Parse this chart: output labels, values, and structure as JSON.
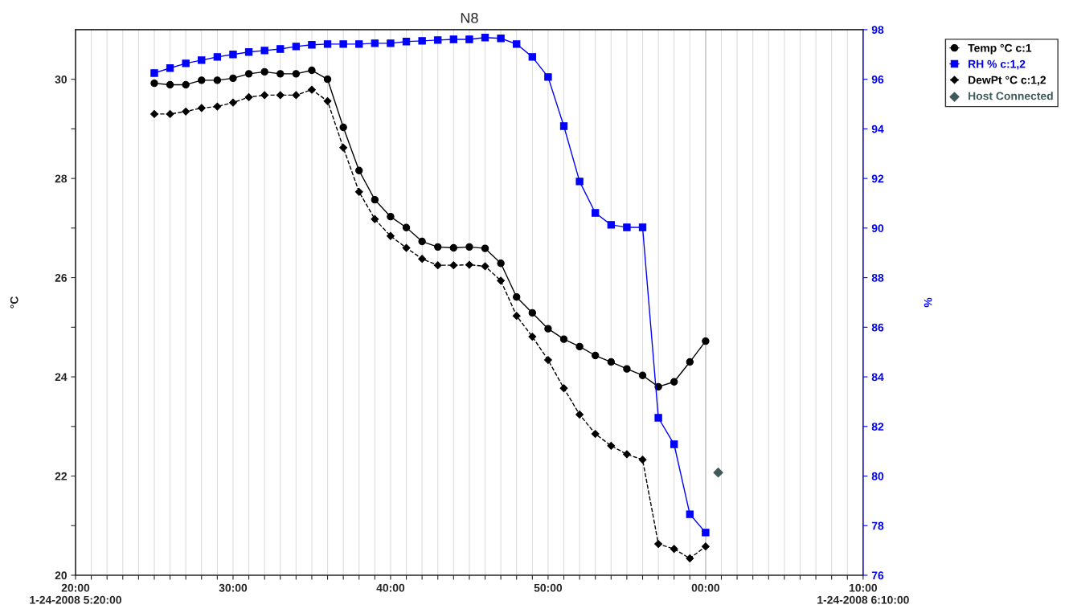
{
  "chart_data": {
    "type": "line",
    "title": "N8",
    "ylabel": "°C",
    "y2label": "%",
    "x": [
      "2008-01-24T05:25",
      "2008-01-24T05:26",
      "2008-01-24T05:27",
      "2008-01-24T05:28",
      "2008-01-24T05:29",
      "2008-01-24T05:30",
      "2008-01-24T05:31",
      "2008-01-24T05:32",
      "2008-01-24T05:33",
      "2008-01-24T05:34",
      "2008-01-24T05:35",
      "2008-01-24T05:36",
      "2008-01-24T05:37",
      "2008-01-24T05:38",
      "2008-01-24T05:39",
      "2008-01-24T05:40",
      "2008-01-24T05:41",
      "2008-01-24T05:42",
      "2008-01-24T05:43",
      "2008-01-24T05:44",
      "2008-01-24T05:45",
      "2008-01-24T05:46",
      "2008-01-24T05:47",
      "2008-01-24T05:48",
      "2008-01-24T05:49",
      "2008-01-24T05:50",
      "2008-01-24T05:51",
      "2008-01-24T05:52",
      "2008-01-24T05:53",
      "2008-01-24T05:54",
      "2008-01-24T05:55",
      "2008-01-24T05:56",
      "2008-01-24T05:57",
      "2008-01-24T05:58",
      "2008-01-24T05:59",
      "2008-01-24T06:00"
    ],
    "xlim": [
      "2008-01-24T05:20",
      "2008-01-24T06:10"
    ],
    "xticks": [
      {
        "value": "2008-01-24T05:20",
        "label": "20:00\n1-24-2008 5:20:00"
      },
      {
        "value": "2008-01-24T05:21",
        "label": null
      },
      {
        "value": "2008-01-24T05:22",
        "label": null
      },
      {
        "value": "2008-01-24T05:23",
        "label": null
      },
      {
        "value": "2008-01-24T05:24",
        "label": null
      },
      {
        "value": "2008-01-24T05:25",
        "label": null
      },
      {
        "value": "2008-01-24T05:26",
        "label": null
      },
      {
        "value": "2008-01-24T05:27",
        "label": null
      },
      {
        "value": "2008-01-24T05:28",
        "label": null
      },
      {
        "value": "2008-01-24T05:29",
        "label": null
      },
      {
        "value": "2008-01-24T05:30",
        "label": "30:00"
      },
      {
        "value": "2008-01-24T05:31",
        "label": null
      },
      {
        "value": "2008-01-24T05:32",
        "label": null
      },
      {
        "value": "2008-01-24T05:33",
        "label": null
      },
      {
        "value": "2008-01-24T05:34",
        "label": null
      },
      {
        "value": "2008-01-24T05:35",
        "label": null
      },
      {
        "value": "2008-01-24T05:36",
        "label": null
      },
      {
        "value": "2008-01-24T05:37",
        "label": null
      },
      {
        "value": "2008-01-24T05:38",
        "label": null
      },
      {
        "value": "2008-01-24T05:39",
        "label": null
      },
      {
        "value": "2008-01-24T05:40",
        "label": "40:00"
      },
      {
        "value": "2008-01-24T05:41",
        "label": null
      },
      {
        "value": "2008-01-24T05:42",
        "label": null
      },
      {
        "value": "2008-01-24T05:43",
        "label": null
      },
      {
        "value": "2008-01-24T05:44",
        "label": null
      },
      {
        "value": "2008-01-24T05:45",
        "label": null
      },
      {
        "value": "2008-01-24T05:46",
        "label": null
      },
      {
        "value": "2008-01-24T05:47",
        "label": null
      },
      {
        "value": "2008-01-24T05:48",
        "label": null
      },
      {
        "value": "2008-01-24T05:49",
        "label": null
      },
      {
        "value": "2008-01-24T05:50",
        "label": "50:00"
      },
      {
        "value": "2008-01-24T05:51",
        "label": null
      },
      {
        "value": "2008-01-24T05:52",
        "label": null
      },
      {
        "value": "2008-01-24T05:53",
        "label": null
      },
      {
        "value": "2008-01-24T05:54",
        "label": null
      },
      {
        "value": "2008-01-24T05:55",
        "label": null
      },
      {
        "value": "2008-01-24T05:56",
        "label": null
      },
      {
        "value": "2008-01-24T05:57",
        "label": null
      },
      {
        "value": "2008-01-24T05:58",
        "label": null
      },
      {
        "value": "2008-01-24T05:59",
        "label": null
      },
      {
        "value": "2008-01-24T06:00",
        "label": "00:00"
      },
      {
        "value": "2008-01-24T06:01",
        "label": null
      },
      {
        "value": "2008-01-24T06:02",
        "label": null
      },
      {
        "value": "2008-01-24T06:03",
        "label": null
      },
      {
        "value": "2008-01-24T06:04",
        "label": null
      },
      {
        "value": "2008-01-24T06:05",
        "label": null
      },
      {
        "value": "2008-01-24T06:06",
        "label": null
      },
      {
        "value": "2008-01-24T06:07",
        "label": null
      },
      {
        "value": "2008-01-24T06:08",
        "label": null
      },
      {
        "value": "2008-01-24T06:09",
        "label": null
      },
      {
        "value": "2008-01-24T06:10",
        "label": "10:00\n1-24-2008 6:10:00"
      }
    ],
    "ylim": [
      20,
      31
    ],
    "yticks": [
      20,
      {
        "value": 21,
        "label": null
      },
      22,
      {
        "value": 23,
        "label": null
      },
      24,
      {
        "value": 25,
        "label": null
      },
      26,
      {
        "value": 27,
        "label": null
      },
      28,
      {
        "value": 29,
        "label": null
      },
      30
    ],
    "y2lim": [
      76,
      98
    ],
    "y2ticks": [
      76,
      78,
      80,
      82,
      84,
      86,
      88,
      90,
      92,
      94,
      96,
      98
    ],
    "grid": "x",
    "legend": "right",
    "ref_lines": [
      {
        "axis": "x",
        "value": "2008-01-24T06:00",
        "color": "#a0a0a0"
      }
    ],
    "series": [
      {
        "name": "Temp °C c:1",
        "color": "#000000",
        "marker": "circle",
        "line_style": "solid",
        "values": [
          29.92,
          29.89,
          29.89,
          29.98,
          29.98,
          30.02,
          30.11,
          30.15,
          30.11,
          30.11,
          30.18,
          30.0,
          29.03,
          28.16,
          27.57,
          27.23,
          27.01,
          26.73,
          26.62,
          26.6,
          26.62,
          26.59,
          26.29,
          25.61,
          25.29,
          24.97,
          24.76,
          24.61,
          24.43,
          24.3,
          24.16,
          24.03,
          23.8,
          23.9,
          24.3,
          24.72
        ]
      },
      {
        "name": "RH % c:1,2",
        "color": "#0000ff",
        "marker": "square",
        "line_style": "solid",
        "axis": "y2",
        "values": [
          96.25,
          96.45,
          96.64,
          96.77,
          96.9,
          97.0,
          97.1,
          97.16,
          97.22,
          97.32,
          97.39,
          97.42,
          97.42,
          97.42,
          97.45,
          97.45,
          97.52,
          97.55,
          97.58,
          97.61,
          97.61,
          97.68,
          97.65,
          97.42,
          96.9,
          96.09,
          94.11,
          91.88,
          90.61,
          90.13,
          90.03,
          90.03,
          82.35,
          81.28,
          78.46,
          77.72
        ]
      },
      {
        "name": "DewPt °C c:1,2",
        "color": "#000000",
        "marker": "diamond",
        "line_style": "dashed",
        "values": [
          29.3,
          29.3,
          29.35,
          29.42,
          29.45,
          29.53,
          29.64,
          29.68,
          29.68,
          29.68,
          29.79,
          29.56,
          28.62,
          27.73,
          27.18,
          26.84,
          26.6,
          26.38,
          26.25,
          26.25,
          26.26,
          26.23,
          25.94,
          25.23,
          24.81,
          24.34,
          23.77,
          23.24,
          22.85,
          22.61,
          22.44,
          22.33,
          20.63,
          20.53,
          20.34,
          20.58
        ]
      },
      {
        "name": "Host Connected",
        "type": "scatter",
        "color": "#3f5a5a",
        "marker": "diamond",
        "x": [
          "2008-01-24T06:00:48"
        ],
        "values": [
          22.07
        ]
      }
    ]
  }
}
